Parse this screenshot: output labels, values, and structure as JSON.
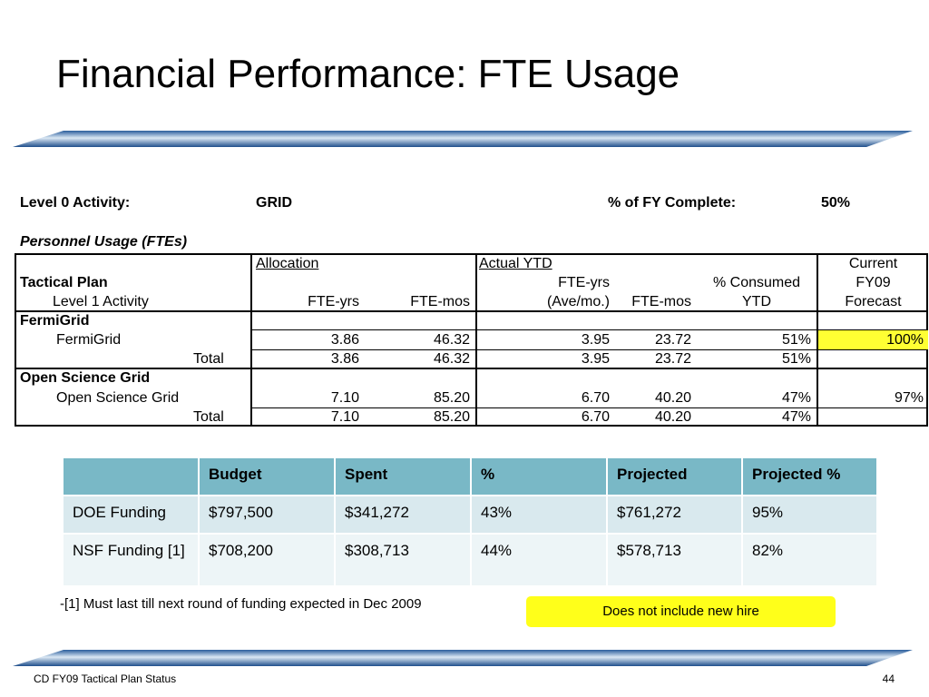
{
  "slide": {
    "title": "Financial Performance: FTE Usage",
    "footer_left": "CD FY09 Tactical Plan Status",
    "page_number": "44"
  },
  "header_line": {
    "level0_label": "Level 0 Activity:",
    "level0_value": "GRID",
    "fy_label": "% of FY Complete:",
    "fy_value": "50%"
  },
  "fte_table": {
    "caption": "Personnel Usage (FTEs)",
    "col_groups": {
      "allocation": "Allocation",
      "actual_ytd": "Actual YTD"
    },
    "col_headers": {
      "tactical_plan": "Tactical Plan",
      "level1": "Level 1 Activity",
      "alloc_fte_yrs": "FTE-yrs",
      "alloc_fte_mos": "FTE-mos",
      "act_fte_yrs_1": "FTE-yrs",
      "act_fte_yrs_2": "(Ave/mo.)",
      "act_fte_mos": "FTE-mos",
      "consumed_1": "% Consumed",
      "consumed_2": "YTD",
      "forecast_1": "Current",
      "forecast_2": "FY09",
      "forecast_3": "Forecast"
    },
    "sections": [
      {
        "name": "FermiGrid",
        "item": {
          "label": "FermiGrid",
          "alloc_yrs": "3.86",
          "alloc_mos": "46.32",
          "act_yrs": "3.95",
          "act_mos": "23.72",
          "consumed": "51%",
          "forecast": "100%"
        },
        "total": {
          "label": "Total",
          "alloc_yrs": "3.86",
          "alloc_mos": "46.32",
          "act_yrs": "3.95",
          "act_mos": "23.72",
          "consumed": "51%"
        }
      },
      {
        "name": "Open Science Grid",
        "item": {
          "label": "Open Science Grid",
          "alloc_yrs": "7.10",
          "alloc_mos": "85.20",
          "act_yrs": "6.70",
          "act_mos": "40.20",
          "consumed": "47%",
          "forecast": "97%"
        },
        "total": {
          "label": "Total",
          "alloc_yrs": "7.10",
          "alloc_mos": "85.20",
          "act_yrs": "6.70",
          "act_mos": "40.20",
          "consumed": "47%"
        }
      }
    ],
    "highlight_color": "#ffff33"
  },
  "budget_table": {
    "headers": [
      "",
      "Budget",
      "Spent",
      "%",
      "Projected",
      "Projected %"
    ],
    "rows": [
      [
        "DOE Funding",
        "$797,500",
        "$341,272",
        "43%",
        "$761,272",
        "95%"
      ],
      [
        "NSF Funding [1]",
        "$708,200",
        "$308,713",
        "44%",
        "$578,713",
        "82%"
      ]
    ],
    "header_color": "#79b8c6"
  },
  "footnote": "-[1] Must last till next round of funding expected in Dec 2009",
  "callout": "Does not include new hire",
  "colors": {
    "callout": "#ffff1a",
    "bar_dark": "#1f4f8c",
    "bar_light": "#cfe0f0"
  }
}
